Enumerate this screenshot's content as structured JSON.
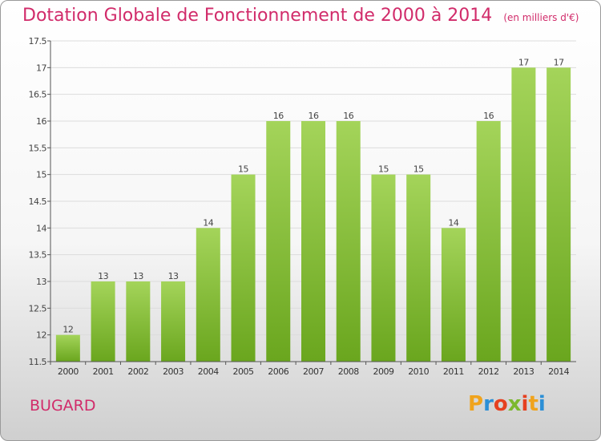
{
  "header": {
    "title": "Dotation Globale de Fonctionnement de 2000 à 2014",
    "unit": "(en milliers d'€)"
  },
  "footer": {
    "commune": "BUGARD",
    "logo": "Proxiti",
    "logo_colors": [
      "#f0a31c",
      "#2c8fd6",
      "#e64020",
      "#7cb82f",
      "#e64020",
      "#f0a31c",
      "#2c8fd6"
    ]
  },
  "colors": {
    "bar_top": "#a4d45a",
    "bar_bottom": "#6aa61e",
    "title": "#d12b6a"
  },
  "chart_data": {
    "type": "bar",
    "categories": [
      "2000",
      "2001",
      "2002",
      "2003",
      "2004",
      "2005",
      "2006",
      "2007",
      "2008",
      "2009",
      "2010",
      "2011",
      "2012",
      "2013",
      "2014"
    ],
    "values": [
      12,
      13,
      13,
      13,
      14,
      15,
      16,
      16,
      16,
      15,
      15,
      14,
      16,
      17,
      17
    ],
    "data_labels": [
      "12",
      "13",
      "13",
      "13",
      "14",
      "15",
      "16",
      "16",
      "16",
      "15",
      "15",
      "14",
      "16",
      "17",
      "17"
    ],
    "title": "Dotation Globale de Fonctionnement de 2000 à 2014",
    "xlabel": "",
    "ylabel": "",
    "ylim": [
      11.5,
      17.5
    ],
    "yticks": [
      11.5,
      12,
      12.5,
      13,
      13.5,
      14,
      14.5,
      15,
      15.5,
      16,
      16.5,
      17,
      17.5
    ],
    "ytick_labels": [
      "11.5",
      "12",
      "12.5",
      "13",
      "13.5",
      "14",
      "14.5",
      "15",
      "15.5",
      "16",
      "16.5",
      "17",
      "17.5"
    ],
    "grid": true,
    "legend": "none"
  }
}
